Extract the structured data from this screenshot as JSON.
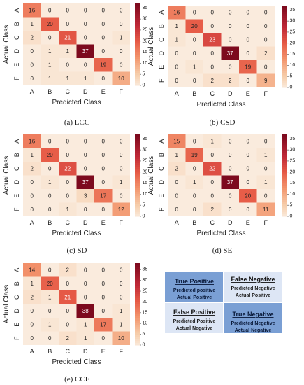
{
  "chart_data": [
    {
      "type": "heatmap",
      "caption": "(a) LCC",
      "xlabel": "Predicted Class",
      "ylabel": "Actual Class",
      "categories": [
        "A",
        "B",
        "C",
        "D",
        "E",
        "F"
      ],
      "matrix": [
        [
          16,
          0,
          0,
          0,
          0,
          0
        ],
        [
          1,
          20,
          0,
          0,
          0,
          0
        ],
        [
          2,
          0,
          21,
          0,
          0,
          1
        ],
        [
          0,
          1,
          1,
          37,
          0,
          0
        ],
        [
          0,
          1,
          0,
          0,
          19,
          0
        ],
        [
          0,
          1,
          1,
          1,
          0,
          10
        ]
      ],
      "colorbar_ticks": [
        "35",
        "30",
        "25",
        "20",
        "15",
        "10",
        "5",
        "0"
      ],
      "vmax": 37
    },
    {
      "type": "heatmap",
      "caption": "(b) CSD",
      "xlabel": "Predicted Class",
      "ylabel": "Actual Class",
      "categories": [
        "A",
        "B",
        "C",
        "D",
        "E",
        "F"
      ],
      "matrix": [
        [
          16,
          0,
          0,
          0,
          0,
          0
        ],
        [
          1,
          20,
          0,
          0,
          0,
          0
        ],
        [
          1,
          0,
          23,
          0,
          0,
          0
        ],
        [
          0,
          0,
          0,
          37,
          0,
          2
        ],
        [
          0,
          1,
          0,
          0,
          19,
          0
        ],
        [
          0,
          0,
          2,
          2,
          0,
          9
        ]
      ],
      "colorbar_ticks": [
        "35",
        "30",
        "25",
        "20",
        "15",
        "10",
        "5",
        "0"
      ],
      "vmax": 37
    },
    {
      "type": "heatmap",
      "caption": "(c) SD",
      "xlabel": "Predicted Class",
      "ylabel": "Actual Class",
      "categories": [
        "A",
        "B",
        "C",
        "D",
        "E",
        "F"
      ],
      "matrix": [
        [
          16,
          0,
          0,
          0,
          0,
          0
        ],
        [
          1,
          20,
          0,
          0,
          0,
          0
        ],
        [
          2,
          0,
          22,
          0,
          0,
          0
        ],
        [
          0,
          1,
          0,
          37,
          0,
          1
        ],
        [
          0,
          0,
          0,
          3,
          17,
          0
        ],
        [
          0,
          0,
          1,
          0,
          0,
          12
        ]
      ],
      "colorbar_ticks": [
        "35",
        "30",
        "25",
        "20",
        "15",
        "10",
        "5",
        "0"
      ],
      "vmax": 37
    },
    {
      "type": "heatmap",
      "caption": "(d) SE",
      "xlabel": "Predicted Class",
      "ylabel": "Actual Class",
      "categories": [
        "A",
        "B",
        "C",
        "D",
        "E",
        "F"
      ],
      "matrix": [
        [
          15,
          0,
          1,
          0,
          0,
          0
        ],
        [
          1,
          19,
          0,
          0,
          0,
          1
        ],
        [
          2,
          0,
          22,
          0,
          0,
          0
        ],
        [
          0,
          1,
          0,
          37,
          0,
          1
        ],
        [
          0,
          0,
          0,
          0,
          20,
          0
        ],
        [
          0,
          0,
          2,
          0,
          0,
          11
        ]
      ],
      "colorbar_ticks": [
        "35",
        "30",
        "25",
        "20",
        "15",
        "10",
        "5",
        "0"
      ],
      "vmax": 37
    },
    {
      "type": "heatmap",
      "caption": "(e) CCF",
      "xlabel": "Predicted Class",
      "ylabel": "Actual Class",
      "categories": [
        "A",
        "B",
        "C",
        "D",
        "E",
        "F"
      ],
      "matrix": [
        [
          14,
          0,
          2,
          0,
          0,
          0
        ],
        [
          1,
          20,
          0,
          0,
          0,
          0
        ],
        [
          2,
          1,
          21,
          0,
          0,
          0
        ],
        [
          0,
          0,
          0,
          38,
          0,
          1
        ],
        [
          0,
          1,
          0,
          1,
          17,
          1
        ],
        [
          0,
          0,
          2,
          1,
          0,
          10
        ]
      ],
      "colorbar_ticks": [
        "35",
        "30",
        "25",
        "20",
        "15",
        "10",
        "5",
        "0"
      ],
      "vmax": 38
    }
  ],
  "legend": {
    "true_positive": {
      "title": "True Positive",
      "line1": "Predicted positive",
      "line2": "Actual Positive",
      "color": "#7a9fd4"
    },
    "false_negative": {
      "title": "False Negative",
      "line1": "Predicted Negative",
      "line2": "Actual Positive",
      "color": "#dde6f5"
    },
    "false_positive": {
      "title": "False Positive",
      "line1": "Predicted Positive",
      "line2": "Actual Negative",
      "color": "#dde6f5"
    },
    "true_negative": {
      "title": "True Negative",
      "line1": "Predicted Negative",
      "line2": "Actual Negative",
      "color": "#7a9fd4"
    }
  }
}
